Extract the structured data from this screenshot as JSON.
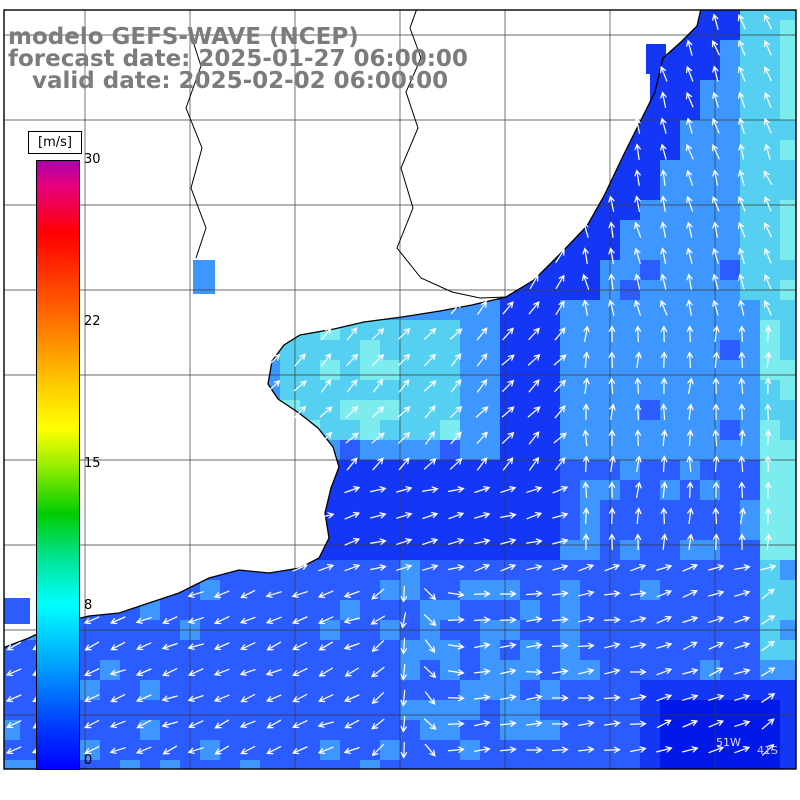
{
  "header": {
    "line1": "modelo GEFS-WAVE (NCEP)",
    "line2": "forecast date: 2025-01-27 06:00:00",
    "line3": "   valid date: 2025-02-02 06:00:00"
  },
  "colorbar": {
    "unit": "[m/s]",
    "max": 30,
    "min": 0,
    "ticks": [
      30,
      22,
      15,
      8,
      0
    ],
    "gradient": [
      {
        "c": "#aa00aa",
        "p": 0
      },
      {
        "c": "#e6007f",
        "p": 4
      },
      {
        "c": "#ff0000",
        "p": 12
      },
      {
        "c": "#ff6600",
        "p": 25
      },
      {
        "c": "#ffcc00",
        "p": 37
      },
      {
        "c": "#ffff00",
        "p": 44
      },
      {
        "c": "#99ee00",
        "p": 50
      },
      {
        "c": "#00cc00",
        "p": 58
      },
      {
        "c": "#00e6a0",
        "p": 66
      },
      {
        "c": "#00ffff",
        "p": 73
      },
      {
        "c": "#00aaff",
        "p": 82
      },
      {
        "c": "#0044ff",
        "p": 92
      },
      {
        "c": "#0000ff",
        "p": 100
      }
    ]
  },
  "map": {
    "edge_labels": [
      "51W",
      "41S"
    ],
    "arrow_color": "#ffffff",
    "land_color": "#ffffff",
    "coast_color": "#000000",
    "grid_color": "#3a3a3a",
    "frame_color": "#000000",
    "field_palette": [
      "#0018e8",
      "#1437f5",
      "#2a5cff",
      "#3e97ff",
      "#55d0f0",
      "#7cecef"
    ]
  }
}
